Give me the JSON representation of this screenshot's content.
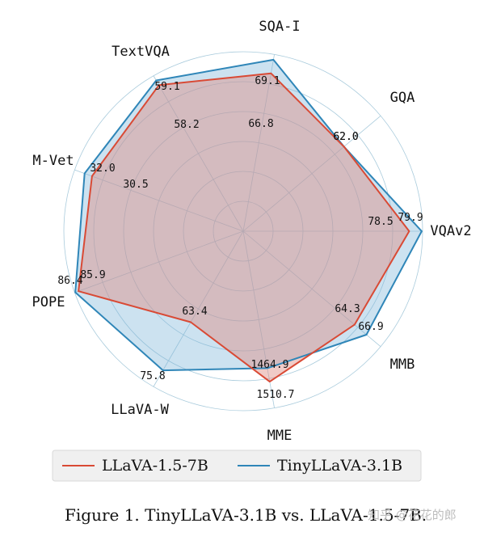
{
  "chart_data": {
    "type": "radar",
    "axes": [
      "VQAv2",
      "GQA",
      "SQA-I",
      "TextVQA",
      "M-Vet",
      "POPE",
      "LLaVA-W",
      "MME",
      "MMB"
    ],
    "series": [
      {
        "name": "LLaVA-1.5-7B",
        "values": [
          78.5,
          62.0,
          66.8,
          58.2,
          30.5,
          85.9,
          63.4,
          1510.7,
          64.3
        ],
        "labels": [
          "78.5",
          "62.0",
          "66.8",
          "58.2",
          "30.5",
          "85.9",
          "63.4",
          "1510.7",
          "64.3"
        ],
        "color": "#d94a35",
        "fill": "rgba(222, 140, 130, 0.45)"
      },
      {
        "name": "TinyLLaVA-3.1B",
        "values": [
          79.9,
          62.0,
          69.1,
          59.1,
          32.0,
          86.4,
          75.8,
          1464.9,
          66.9
        ],
        "labels": [
          "79.9",
          "62.0",
          "69.1",
          "59.1",
          "32.0",
          "86.4",
          "75.8",
          "1464.9",
          "66.9"
        ],
        "color": "#2f86b8",
        "fill": "rgba(120, 180, 215, 0.38)"
      }
    ],
    "grid": true,
    "legend": "bottom"
  },
  "caption": "Figure 1. TinyLLaVA-3.1B vs. LLaVA-1.5-7B.",
  "watermark": "知乎 @花花的郎",
  "colors": {
    "grid": "#a9cbdc"
  }
}
